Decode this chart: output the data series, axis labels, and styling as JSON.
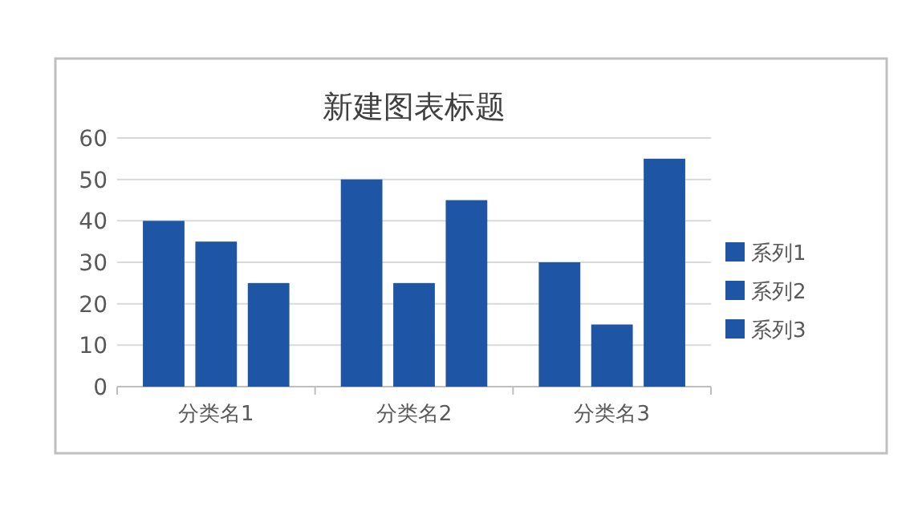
{
  "chart_data": {
    "type": "bar",
    "title": "新建图表标题",
    "categories": [
      "分类名1",
      "分类名2",
      "分类名3"
    ],
    "series": [
      {
        "name": "系列1",
        "color": "#1f55a5",
        "values": [
          40,
          50,
          30
        ]
      },
      {
        "name": "系列2",
        "color": "#1f55a5",
        "values": [
          35,
          25,
          15
        ]
      },
      {
        "name": "系列3",
        "color": "#1f55a5",
        "values": [
          25,
          45,
          55
        ]
      }
    ],
    "ylim": [
      0,
      60
    ],
    "yticks": [
      0,
      10,
      20,
      30,
      40,
      50,
      60
    ],
    "grid": "y",
    "legend": "right"
  }
}
